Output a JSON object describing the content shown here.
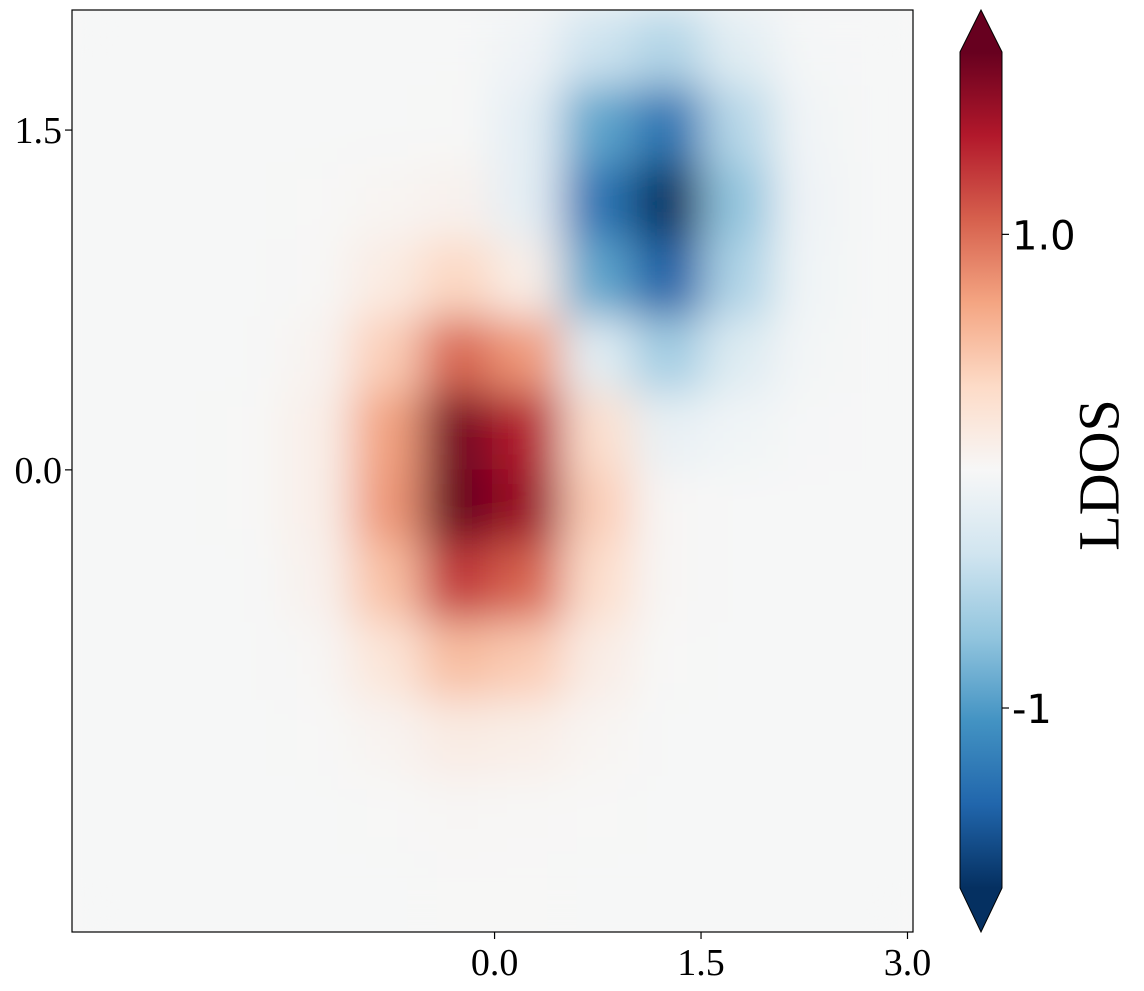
{
  "chart_data": {
    "type": "heatmap",
    "x": [
      -2.82,
      -2.31,
      -1.8,
      -1.29,
      -0.78,
      -0.27,
      0.24,
      0.75,
      1.26,
      1.77,
      2.28,
      2.79
    ],
    "y": [
      1.86,
      1.52,
      1.18,
      0.84,
      0.5,
      0.17,
      -0.17,
      -0.5,
      -0.84,
      -1.18,
      -1.52,
      -1.86
    ],
    "z": [
      [
        0,
        0,
        0,
        0,
        0,
        0,
        -0.07,
        -0.37,
        -0.52,
        -0.2,
        -0.02,
        0
      ],
      [
        0,
        0,
        0,
        0,
        0,
        0.01,
        -0.17,
        -0.93,
        -1.3,
        -0.5,
        -0.05,
        0
      ],
      [
        0,
        0,
        0,
        0.01,
        0.04,
        0.08,
        -0.17,
        -1.29,
        -1.83,
        -0.7,
        -0.07,
        0
      ],
      [
        0,
        0,
        0,
        0.02,
        0.16,
        0.38,
        0.12,
        -0.93,
        -1.43,
        -0.55,
        -0.06,
        0
      ],
      [
        0,
        0,
        0,
        0.06,
        0.44,
        1.03,
        0.77,
        -0.2,
        -0.61,
        -0.24,
        -0.03,
        0
      ],
      [
        0,
        0,
        0.01,
        0.11,
        0.72,
        1.7,
        1.4,
        0.31,
        -0.13,
        -0.06,
        -0.01,
        0
      ],
      [
        0,
        0,
        0.01,
        0.11,
        0.77,
        1.83,
        1.53,
        0.44,
        0.03,
        0,
        0,
        0
      ],
      [
        0,
        0,
        0,
        0.08,
        0.53,
        1.26,
        1.05,
        0.32,
        0.03,
        0,
        0,
        0
      ],
      [
        0,
        0,
        0,
        0.03,
        0.23,
        0.55,
        0.46,
        0.14,
        0.01,
        0,
        0,
        0
      ],
      [
        0,
        0,
        0,
        0.01,
        0.06,
        0.15,
        0.12,
        0.04,
        0,
        0,
        0,
        0
      ],
      [
        0,
        0,
        0,
        0,
        0.01,
        0.03,
        0.02,
        0.01,
        0,
        0,
        0,
        0
      ],
      [
        0,
        0,
        0,
        0,
        0,
        0.01,
        0.01,
        0,
        0,
        0,
        0,
        0
      ]
    ],
    "xlim": [
      -3.07,
      3.04
    ],
    "ylim": [
      -2.04,
      2.03
    ],
    "xticks": [
      {
        "value": 0,
        "label": "0.0"
      },
      {
        "value": 1.5,
        "label": "1.5"
      },
      {
        "value": 3,
        "label": "3.0"
      }
    ],
    "yticks": [
      {
        "value": 0,
        "label": "0.0"
      },
      {
        "value": 1.5,
        "label": "1.5"
      }
    ],
    "colormap": [
      "#053061",
      "#2166ac",
      "#4393c3",
      "#92c5de",
      "#d1e5f0",
      "#f7f7f7",
      "#fddbc7",
      "#f4a582",
      "#d6604d",
      "#b2182b",
      "#67001f"
    ],
    "clim": [
      -1.76,
      1.77
    ],
    "colorbar_extend": "both",
    "colorbar_ticks": [
      {
        "value": 1,
        "label": "1.0"
      },
      {
        "value": -1,
        "label": "-1"
      }
    ],
    "colorbar_label": "LDOS"
  }
}
